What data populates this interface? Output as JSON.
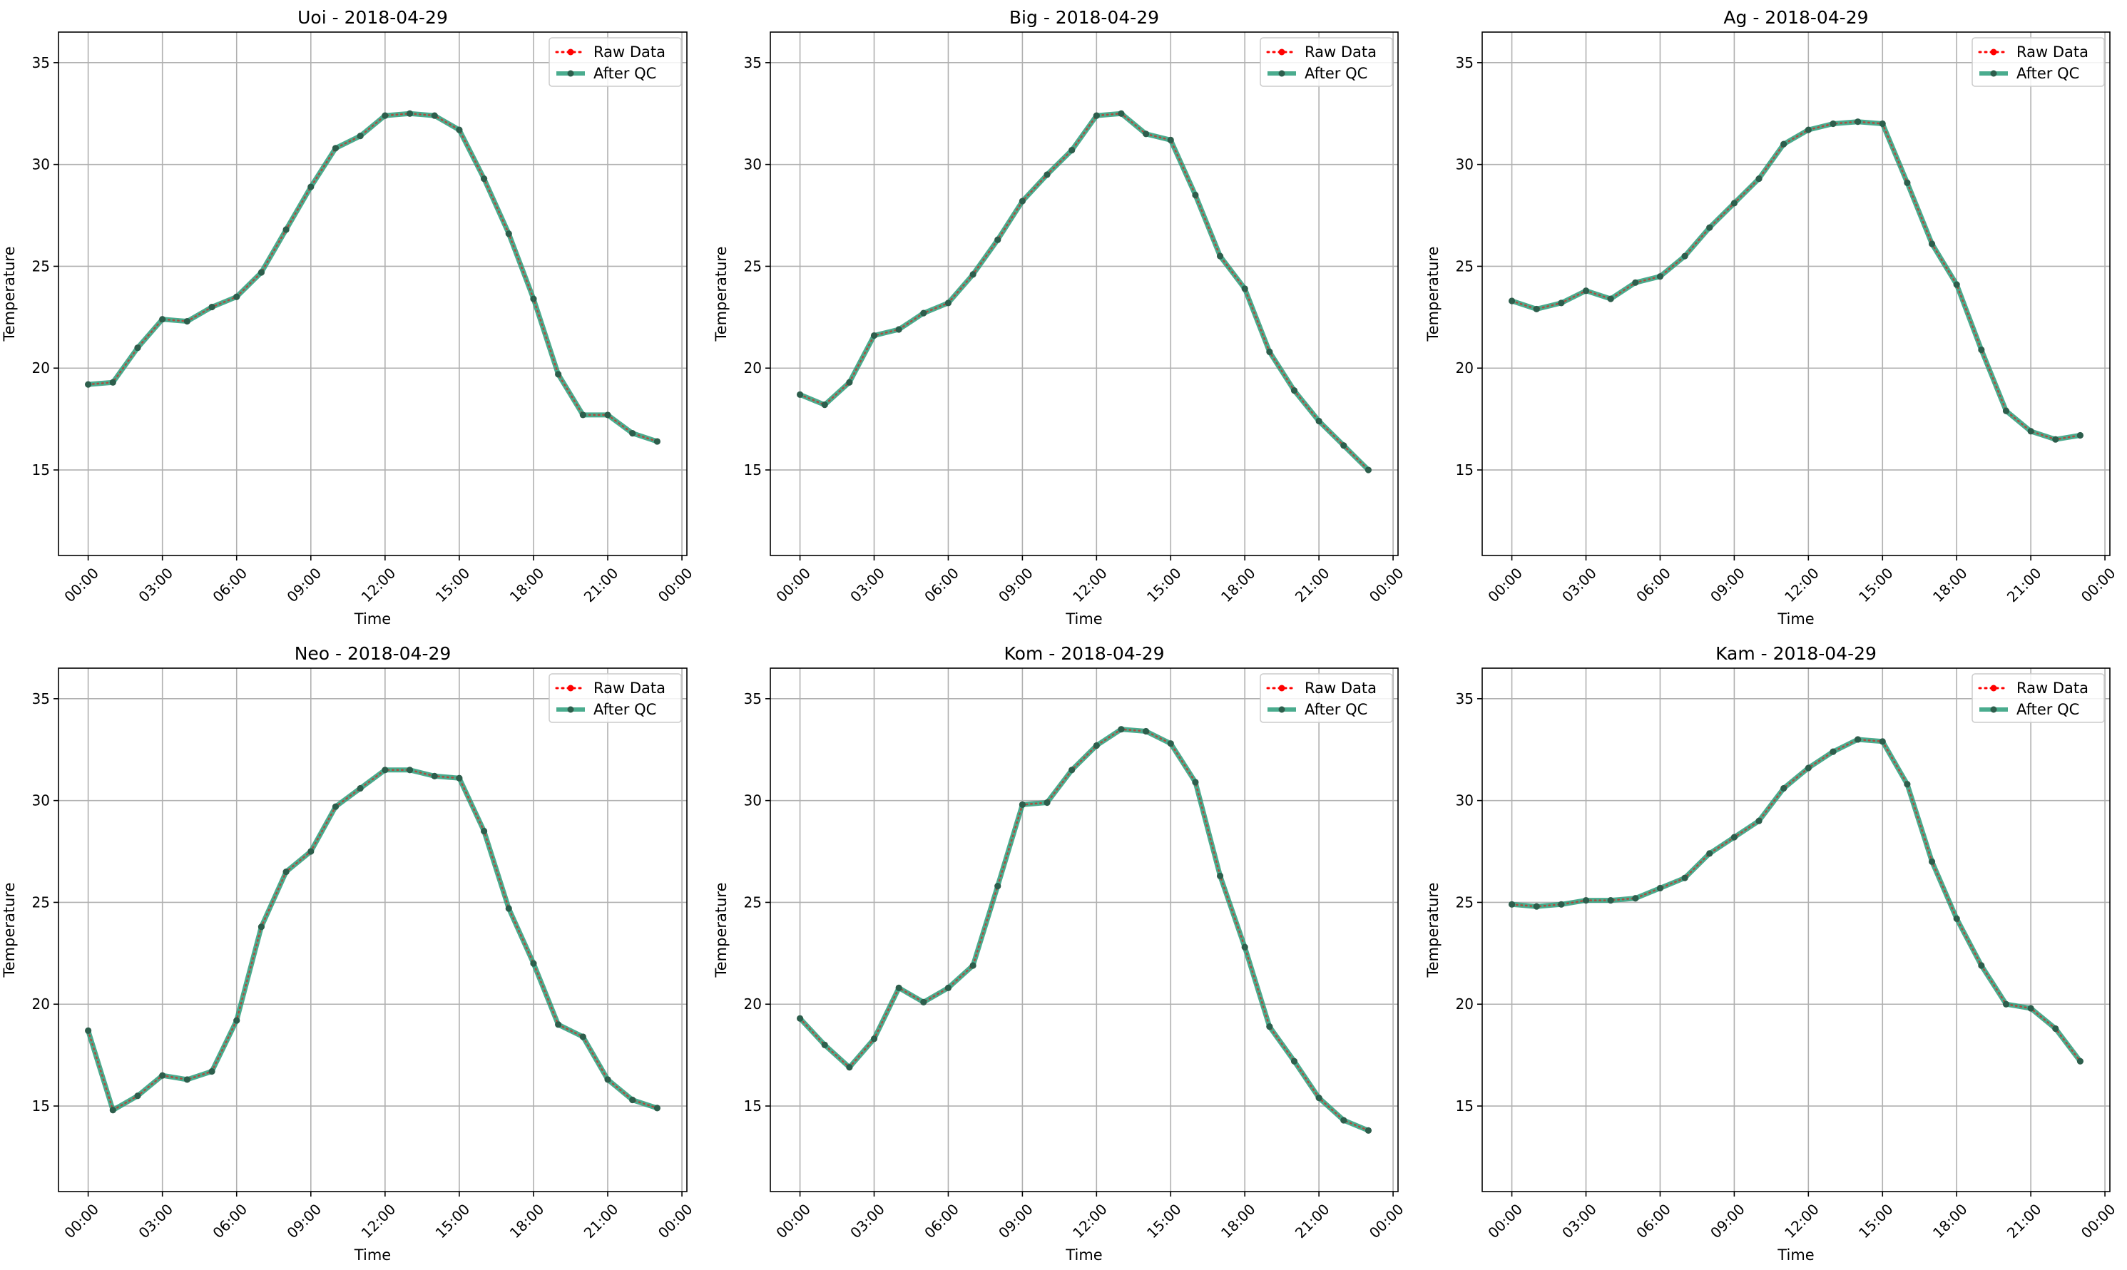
{
  "chart_data": [
    {
      "type": "line",
      "title": "Uoi - 2018-04-29",
      "xlabel": "Time",
      "ylabel": "Temperature",
      "x_hours": [
        0,
        1,
        2,
        3,
        4,
        5,
        6,
        7,
        8,
        9,
        10,
        11,
        12,
        13,
        14,
        15,
        16,
        17,
        18,
        19,
        20,
        21,
        22,
        23
      ],
      "series": [
        {
          "name": "Raw Data",
          "color": "#ff0000",
          "style": "dotted",
          "values": [
            19.2,
            19.3,
            21.0,
            22.4,
            22.3,
            23.0,
            23.5,
            24.7,
            26.8,
            28.9,
            30.8,
            31.4,
            32.4,
            32.5,
            32.4,
            31.7,
            29.3,
            26.6,
            23.4,
            19.7,
            17.7,
            17.7,
            16.8,
            16.4
          ]
        },
        {
          "name": "After QC",
          "color": "#2a9d7a",
          "style": "solid",
          "values": [
            19.2,
            19.3,
            21.0,
            22.4,
            22.3,
            23.0,
            23.5,
            24.7,
            26.8,
            28.9,
            30.8,
            31.4,
            32.4,
            32.5,
            32.4,
            31.7,
            29.3,
            26.6,
            23.4,
            19.7,
            17.7,
            17.7,
            16.8,
            16.4
          ]
        }
      ],
      "xtick_labels": [
        "00:00",
        "03:00",
        "06:00",
        "09:00",
        "12:00",
        "15:00",
        "18:00",
        "21:00",
        "00:00"
      ],
      "yticks": [
        15,
        20,
        25,
        30,
        35
      ],
      "ylim": [
        10.8,
        36.5
      ],
      "grid": true,
      "legend": "top-right"
    },
    {
      "type": "line",
      "title": "Big - 2018-04-29",
      "xlabel": "Time",
      "ylabel": "Temperature",
      "x_hours": [
        0,
        1,
        2,
        3,
        4,
        5,
        6,
        7,
        8,
        9,
        10,
        11,
        12,
        13,
        14,
        15,
        16,
        17,
        18,
        19,
        20,
        21,
        22,
        23
      ],
      "series": [
        {
          "name": "Raw Data",
          "color": "#ff0000",
          "style": "dotted",
          "values": [
            18.7,
            18.2,
            19.3,
            21.6,
            21.9,
            22.7,
            23.2,
            24.6,
            26.3,
            28.2,
            29.5,
            30.7,
            32.4,
            32.5,
            31.5,
            31.2,
            28.5,
            25.5,
            23.9,
            20.8,
            18.9,
            17.4,
            16.2,
            15.0
          ]
        },
        {
          "name": "After QC",
          "color": "#2a9d7a",
          "style": "solid",
          "values": [
            18.7,
            18.2,
            19.3,
            21.6,
            21.9,
            22.7,
            23.2,
            24.6,
            26.3,
            28.2,
            29.5,
            30.7,
            32.4,
            32.5,
            31.5,
            31.2,
            28.5,
            25.5,
            23.9,
            20.8,
            18.9,
            17.4,
            16.2,
            15.0
          ]
        }
      ],
      "xtick_labels": [
        "00:00",
        "03:00",
        "06:00",
        "09:00",
        "12:00",
        "15:00",
        "18:00",
        "21:00",
        "00:00"
      ],
      "yticks": [
        15,
        20,
        25,
        30,
        35
      ],
      "ylim": [
        10.8,
        36.5
      ],
      "grid": true,
      "legend": "top-right"
    },
    {
      "type": "line",
      "title": "Ag - 2018-04-29",
      "xlabel": "Time",
      "ylabel": "Temperature",
      "x_hours": [
        0,
        1,
        2,
        3,
        4,
        5,
        6,
        7,
        8,
        9,
        10,
        11,
        12,
        13,
        14,
        15,
        16,
        17,
        18,
        19,
        20,
        21,
        22,
        23
      ],
      "series": [
        {
          "name": "Raw Data",
          "color": "#ff0000",
          "style": "dotted",
          "values": [
            23.3,
            22.9,
            23.2,
            23.8,
            23.4,
            24.2,
            24.5,
            25.5,
            26.9,
            28.1,
            29.3,
            31.0,
            31.7,
            32.0,
            32.1,
            32.0,
            29.1,
            26.1,
            24.1,
            20.9,
            17.9,
            16.9,
            16.5,
            16.7
          ]
        },
        {
          "name": "After QC",
          "color": "#2a9d7a",
          "style": "solid",
          "values": [
            23.3,
            22.9,
            23.2,
            23.8,
            23.4,
            24.2,
            24.5,
            25.5,
            26.9,
            28.1,
            29.3,
            31.0,
            31.7,
            32.0,
            32.1,
            32.0,
            29.1,
            26.1,
            24.1,
            20.9,
            17.9,
            16.9,
            16.5,
            16.7
          ]
        }
      ],
      "xtick_labels": [
        "00:00",
        "03:00",
        "06:00",
        "09:00",
        "12:00",
        "15:00",
        "18:00",
        "21:00",
        "00:00"
      ],
      "yticks": [
        15,
        20,
        25,
        30,
        35
      ],
      "ylim": [
        10.8,
        36.5
      ],
      "grid": true,
      "legend": "top-right"
    },
    {
      "type": "line",
      "title": "Neo - 2018-04-29",
      "xlabel": "Time",
      "ylabel": "Temperature",
      "x_hours": [
        0,
        1,
        2,
        3,
        4,
        5,
        6,
        7,
        8,
        9,
        10,
        11,
        12,
        13,
        14,
        15,
        16,
        17,
        18,
        19,
        20,
        21,
        22,
        23
      ],
      "series": [
        {
          "name": "Raw Data",
          "color": "#ff0000",
          "style": "dotted",
          "values": [
            18.7,
            14.8,
            15.5,
            16.5,
            16.3,
            16.7,
            19.2,
            23.8,
            26.5,
            27.5,
            29.7,
            30.6,
            31.5,
            31.5,
            31.2,
            31.1,
            28.5,
            24.7,
            22.0,
            19.0,
            18.4,
            16.3,
            15.3,
            14.9
          ]
        },
        {
          "name": "After QC",
          "color": "#2a9d7a",
          "style": "solid",
          "values": [
            18.7,
            14.8,
            15.5,
            16.5,
            16.3,
            16.7,
            19.2,
            23.8,
            26.5,
            27.5,
            29.7,
            30.6,
            31.5,
            31.5,
            31.2,
            31.1,
            28.5,
            24.7,
            22.0,
            19.0,
            18.4,
            16.3,
            15.3,
            14.9
          ]
        }
      ],
      "xtick_labels": [
        "00:00",
        "03:00",
        "06:00",
        "09:00",
        "12:00",
        "15:00",
        "18:00",
        "21:00",
        "00:00"
      ],
      "yticks": [
        15,
        20,
        25,
        30,
        35
      ],
      "ylim": [
        10.8,
        36.5
      ],
      "grid": true,
      "legend": "top-right"
    },
    {
      "type": "line",
      "title": "Kom - 2018-04-29",
      "xlabel": "Time",
      "ylabel": "Temperature",
      "x_hours": [
        0,
        1,
        2,
        3,
        4,
        5,
        6,
        7,
        8,
        9,
        10,
        11,
        12,
        13,
        14,
        15,
        16,
        17,
        18,
        19,
        20,
        21,
        22,
        23
      ],
      "series": [
        {
          "name": "Raw Data",
          "color": "#ff0000",
          "style": "dotted",
          "values": [
            19.3,
            18.0,
            16.9,
            18.3,
            20.8,
            20.1,
            20.8,
            21.9,
            25.8,
            29.8,
            29.9,
            31.5,
            32.7,
            33.5,
            33.4,
            32.8,
            30.9,
            26.3,
            22.8,
            18.9,
            17.2,
            15.4,
            14.3,
            13.8
          ]
        },
        {
          "name": "After QC",
          "color": "#2a9d7a",
          "style": "solid",
          "values": [
            19.3,
            18.0,
            16.9,
            18.3,
            20.8,
            20.1,
            20.8,
            21.9,
            25.8,
            29.8,
            29.9,
            31.5,
            32.7,
            33.5,
            33.4,
            32.8,
            30.9,
            26.3,
            22.8,
            18.9,
            17.2,
            15.4,
            14.3,
            13.8
          ]
        }
      ],
      "xtick_labels": [
        "00:00",
        "03:00",
        "06:00",
        "09:00",
        "12:00",
        "15:00",
        "18:00",
        "21:00",
        "00:00"
      ],
      "yticks": [
        15,
        20,
        25,
        30,
        35
      ],
      "ylim": [
        10.8,
        36.5
      ],
      "grid": true,
      "legend": "top-right"
    },
    {
      "type": "line",
      "title": "Kam - 2018-04-29",
      "xlabel": "Time",
      "ylabel": "Temperature",
      "x_hours": [
        0,
        1,
        2,
        3,
        4,
        5,
        6,
        7,
        8,
        9,
        10,
        11,
        12,
        13,
        14,
        15,
        16,
        17,
        18,
        19,
        20,
        21,
        22,
        23
      ],
      "series": [
        {
          "name": "Raw Data",
          "color": "#ff0000",
          "style": "dotted",
          "values": [
            24.9,
            24.8,
            24.9,
            25.1,
            25.1,
            25.2,
            25.7,
            26.2,
            27.4,
            28.2,
            29.0,
            30.6,
            31.6,
            32.4,
            33.0,
            32.9,
            30.8,
            27.0,
            24.2,
            21.9,
            20.0,
            19.8,
            18.8,
            17.2
          ]
        },
        {
          "name": "After QC",
          "color": "#2a9d7a",
          "style": "solid",
          "values": [
            24.9,
            24.8,
            24.9,
            25.1,
            25.1,
            25.2,
            25.7,
            26.2,
            27.4,
            28.2,
            29.0,
            30.6,
            31.6,
            32.4,
            33.0,
            32.9,
            30.8,
            27.0,
            24.2,
            21.9,
            20.0,
            19.8,
            18.8,
            17.2
          ]
        }
      ],
      "xtick_labels": [
        "00:00",
        "03:00",
        "06:00",
        "09:00",
        "12:00",
        "15:00",
        "18:00",
        "21:00",
        "00:00"
      ],
      "yticks": [
        15,
        20,
        25,
        30,
        35
      ],
      "ylim": [
        10.8,
        36.5
      ],
      "grid": true,
      "legend": "top-right"
    }
  ]
}
